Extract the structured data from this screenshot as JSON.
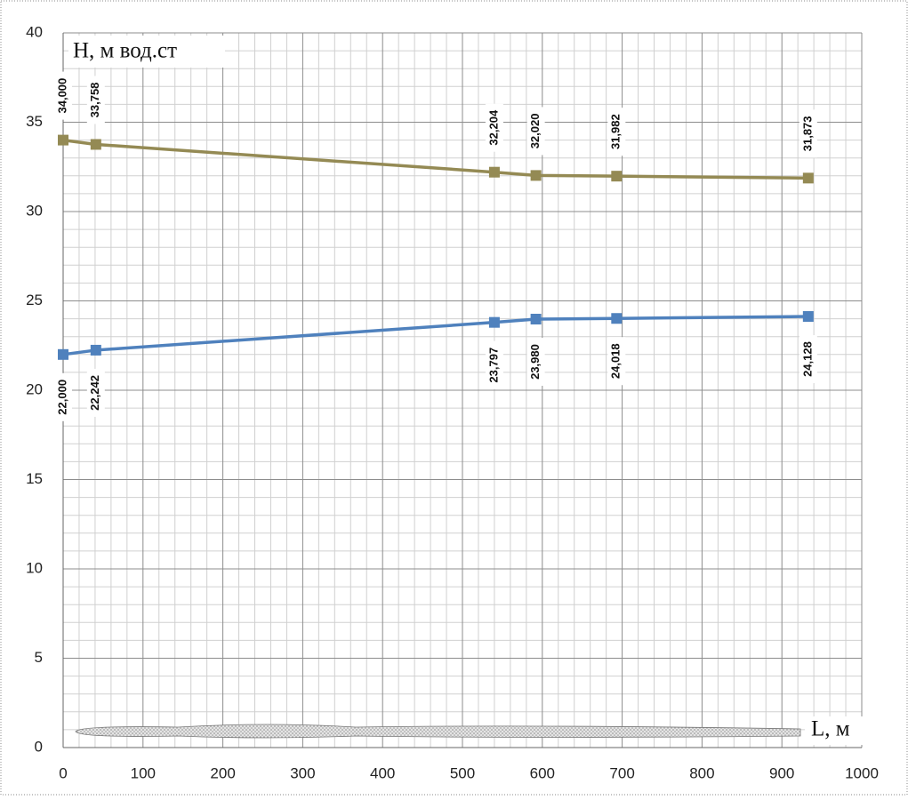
{
  "chart_data": {
    "type": "line",
    "x_label": "L, м",
    "y_label": "H, м вод.ст",
    "x": [
      0,
      41,
      540,
      592,
      693,
      933
    ],
    "series": [
      {
        "color": "#948a54",
        "values": [
          34.0,
          33.758,
          32.204,
          32.02,
          31.982,
          31.873
        ],
        "value_labels": [
          "34,000",
          "33,758",
          "32,204",
          "32,020",
          "31,982",
          "31,873"
        ],
        "label_side": "above"
      },
      {
        "color": "#4f81bd",
        "values": [
          22.0,
          22.242,
          23.797,
          23.98,
          24.018,
          24.128
        ],
        "value_labels": [
          "22,000",
          "22,242",
          "23,797",
          "23,980",
          "24,018",
          "24,128"
        ],
        "label_side": "below"
      }
    ],
    "xlim": [
      0,
      1000
    ],
    "xticks": [
      0,
      100,
      200,
      300,
      400,
      500,
      600,
      700,
      800,
      900,
      1000
    ],
    "ylim": [
      0,
      40
    ],
    "yticks": [
      0,
      5,
      10,
      15,
      20,
      25,
      30,
      35,
      40
    ],
    "grid": true,
    "minor_grid": true
  }
}
